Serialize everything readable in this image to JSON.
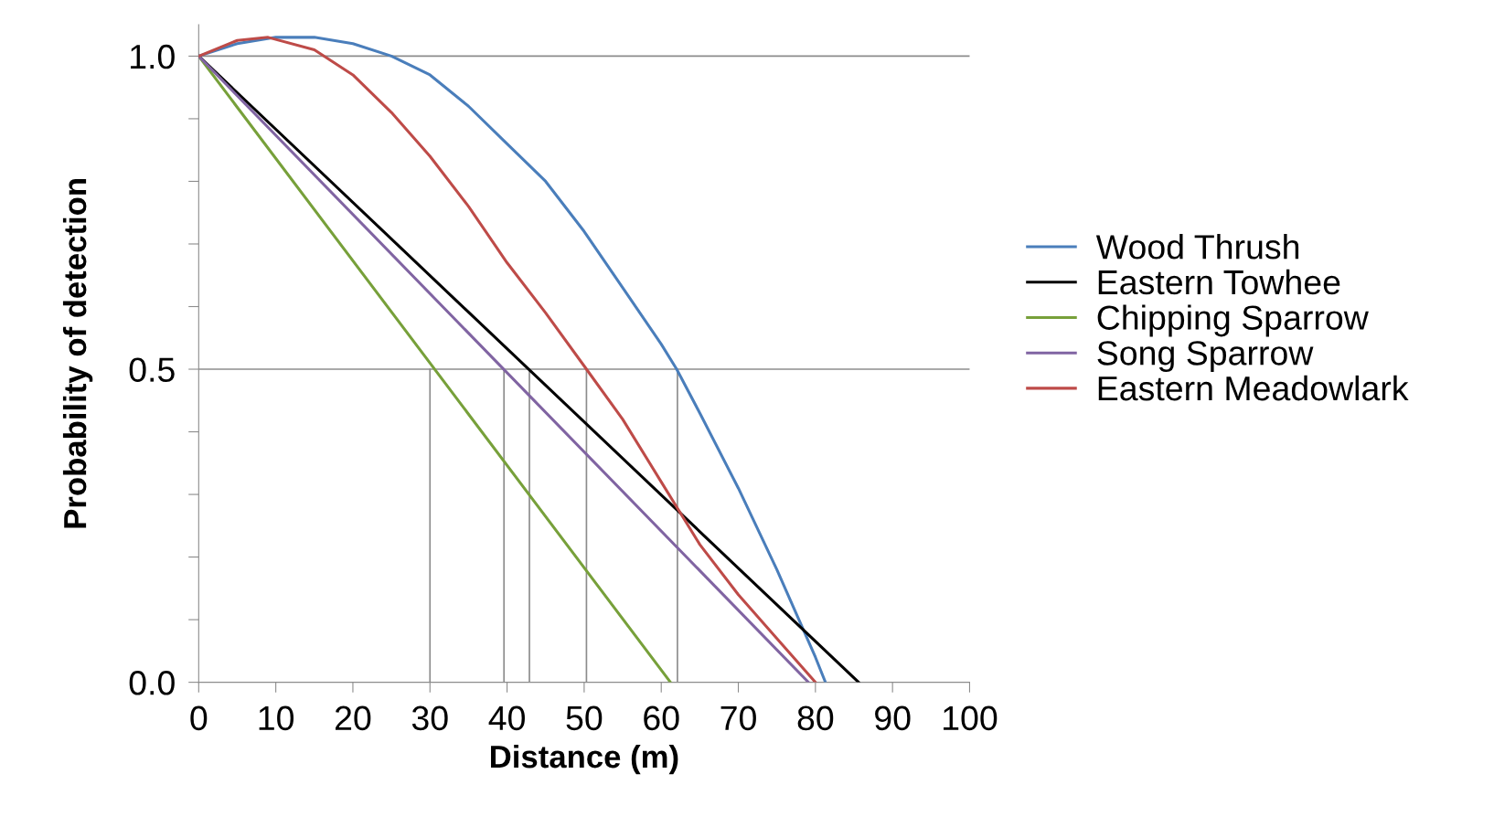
{
  "chart_data": {
    "type": "line",
    "xlabel": "Distance (m)",
    "ylabel": "Probability of detection",
    "xlim": [
      0,
      100
    ],
    "xticks": [
      0,
      10,
      20,
      30,
      40,
      50,
      60,
      70,
      80,
      90,
      100
    ],
    "ylim": [
      0,
      1.05
    ],
    "yticks": [
      {
        "value": 0,
        "label": "0.0"
      },
      {
        "value": 0.1,
        "label": null
      },
      {
        "value": 0.2,
        "label": null
      },
      {
        "value": 0.3,
        "label": null
      },
      {
        "value": 0.4,
        "label": null
      },
      {
        "value": 0.5,
        "label": "0.5"
      },
      {
        "value": 0.6,
        "label": null
      },
      {
        "value": 0.7,
        "label": null
      },
      {
        "value": 0.8,
        "label": null
      },
      {
        "value": 0.9,
        "label": null
      },
      {
        "value": 1.0,
        "label": "1.0"
      }
    ],
    "grid": false,
    "legend": "right",
    "marker": "none",
    "line_style": "solid",
    "ref_lines": [
      {
        "axis": "y",
        "value": 0.5,
        "color": "#8c8c8c"
      },
      {
        "axis": "y",
        "value": 1.0,
        "color": "#8c8c8c"
      }
    ],
    "series": [
      {
        "name": "Wood Thrush",
        "color": "#4a7ebb",
        "x": [
          0,
          5,
          10,
          15,
          20,
          25,
          30,
          35,
          40,
          45,
          50,
          55,
          60,
          62,
          65,
          70,
          75,
          80,
          81.3
        ],
        "values": [
          1,
          1.02,
          1.03,
          1.03,
          1.02,
          1.0,
          0.97,
          0.92,
          0.86,
          0.8,
          0.72,
          0.63,
          0.54,
          0.5,
          0.43,
          0.31,
          0.18,
          0.04,
          0
        ]
      },
      {
        "name": "Eastern Towhee",
        "color": "#000000",
        "x": [
          0,
          85.6
        ],
        "values": [
          1,
          0
        ]
      },
      {
        "name": "Chipping Sparrow",
        "color": "#77a03a",
        "x": [
          0,
          61.2
        ],
        "values": [
          1,
          0
        ]
      },
      {
        "name": "Song Sparrow",
        "color": "#8064a2",
        "x": [
          0,
          79.1
        ],
        "values": [
          1,
          0
        ]
      },
      {
        "name": "Eastern Meadowlark",
        "color": "#be4b48",
        "x": [
          0,
          5,
          9,
          15,
          20,
          25,
          30,
          35,
          40,
          45,
          50.3,
          55,
          60,
          62,
          65,
          70,
          75,
          80
        ],
        "values": [
          1,
          1.025,
          1.03,
          1.01,
          0.97,
          0.91,
          0.84,
          0.76,
          0.67,
          0.59,
          0.5,
          0.42,
          0.32,
          0.28,
          0.22,
          0.14,
          0.07,
          0
        ]
      },
      {
        "color": "#8c8c8c",
        "x": [
          30,
          30
        ],
        "values": [
          0,
          0.5
        ]
      },
      {
        "color": "#8c8c8c",
        "x": [
          39.6,
          39.6
        ],
        "values": [
          0,
          0.5
        ]
      },
      {
        "color": "#8c8c8c",
        "x": [
          42.9,
          42.9
        ],
        "values": [
          0,
          0.5
        ]
      },
      {
        "color": "#8c8c8c",
        "x": [
          50.3,
          50.3
        ],
        "values": [
          0,
          0.5
        ]
      },
      {
        "color": "#8c8c8c",
        "x": [
          62.1,
          62.1
        ],
        "values": [
          0,
          0.5
        ]
      }
    ]
  }
}
